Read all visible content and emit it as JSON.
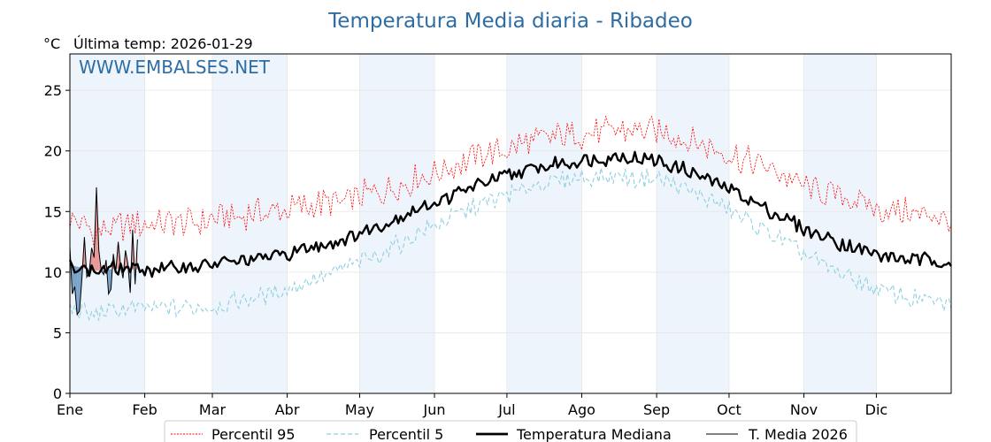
{
  "chart_data": {
    "type": "line",
    "title": "Temperatura Media diaria - Ribadeo",
    "unit_label": "°C",
    "last_temp_label": "Última temp: 2026-01-29",
    "watermark": "WWW.EMBALSES.NET",
    "x_range_days": [
      0,
      365
    ],
    "ylim": [
      0,
      28
    ],
    "y_ticks": [
      0,
      5,
      10,
      15,
      20,
      25
    ],
    "months": [
      {
        "label": "Ene",
        "day": 0
      },
      {
        "label": "Feb",
        "day": 31
      },
      {
        "label": "Mar",
        "day": 59
      },
      {
        "label": "Abr",
        "day": 90
      },
      {
        "label": "May",
        "day": 120
      },
      {
        "label": "Jun",
        "day": 151
      },
      {
        "label": "Jul",
        "day": 181
      },
      {
        "label": "Ago",
        "day": 212
      },
      {
        "label": "Sep",
        "day": 243
      },
      {
        "label": "Oct",
        "day": 273
      },
      {
        "label": "Nov",
        "day": 304
      },
      {
        "label": "Dic",
        "day": 334
      }
    ],
    "shaded_month_indexes": [
      0,
      2,
      4,
      6,
      8,
      10
    ],
    "grid": true,
    "legend_position": "bottom",
    "colors": {
      "p95": "#ff0000",
      "p5": "#8fcfe0",
      "median": "#000000",
      "current": "#000000",
      "above_fill": "#e88080",
      "below_fill": "#5b8fbf",
      "title": "#2e6da4",
      "month_shade": "#eef4fb"
    },
    "series": [
      {
        "key": "p95",
        "name": "Percentil 95",
        "x": [
          0,
          10,
          20,
          31,
          45,
          59,
          75,
          90,
          105,
          120,
          135,
          151,
          166,
          181,
          196,
          212,
          227,
          243,
          258,
          273,
          289,
          304,
          319,
          334,
          349,
          365
        ],
        "values": [
          14.5,
          13.2,
          13.8,
          14.0,
          14.2,
          14.3,
          14.8,
          15.2,
          15.6,
          16.2,
          17.0,
          18.2,
          19.3,
          20.2,
          21.0,
          21.3,
          21.7,
          21.6,
          20.8,
          19.8,
          18.6,
          17.2,
          16.2,
          15.2,
          14.8,
          14.3
        ]
      },
      {
        "key": "p5",
        "name": "Percentil 5",
        "x": [
          0,
          10,
          20,
          31,
          45,
          59,
          75,
          90,
          105,
          120,
          135,
          151,
          166,
          181,
          196,
          212,
          227,
          243,
          258,
          273,
          289,
          304,
          319,
          334,
          349,
          365
        ],
        "values": [
          7.0,
          6.4,
          6.9,
          7.0,
          7.0,
          7.2,
          7.8,
          8.6,
          9.6,
          10.8,
          12.2,
          13.8,
          15.2,
          16.4,
          17.3,
          17.8,
          17.9,
          17.7,
          16.6,
          15.1,
          13.3,
          11.4,
          10.0,
          8.6,
          7.8,
          7.4
        ]
      },
      {
        "key": "median",
        "name": "Temperatura Mediana",
        "x": [
          0,
          10,
          20,
          31,
          45,
          59,
          75,
          90,
          105,
          120,
          135,
          151,
          166,
          181,
          196,
          212,
          227,
          243,
          258,
          273,
          289,
          304,
          319,
          334,
          349,
          365
        ],
        "values": [
          10.6,
          10.1,
          10.3,
          10.2,
          10.4,
          10.6,
          11.0,
          11.5,
          12.3,
          13.2,
          14.4,
          15.8,
          17.0,
          17.9,
          18.7,
          19.3,
          19.5,
          19.2,
          18.2,
          16.9,
          15.2,
          13.6,
          12.4,
          11.4,
          11.0,
          10.9
        ]
      },
      {
        "key": "current",
        "name": "T. Media 2026",
        "x": [
          0,
          1,
          2,
          3,
          4,
          5,
          6,
          7,
          8,
          9,
          10,
          11,
          12,
          13,
          14,
          15,
          16,
          17,
          18,
          19,
          20,
          21,
          22,
          23,
          24,
          25,
          26,
          27,
          28
        ],
        "values": [
          12.1,
          8.2,
          8.8,
          6.5,
          6.8,
          9.5,
          12.9,
          9.6,
          10.0,
          12.0,
          11.2,
          17.0,
          11.8,
          10.1,
          9.8,
          11.0,
          8.2,
          8.6,
          11.5,
          10.0,
          12.5,
          10.5,
          9.5,
          11.8,
          10.7,
          8.3,
          13.5,
          9.0,
          12.7
        ]
      }
    ]
  }
}
